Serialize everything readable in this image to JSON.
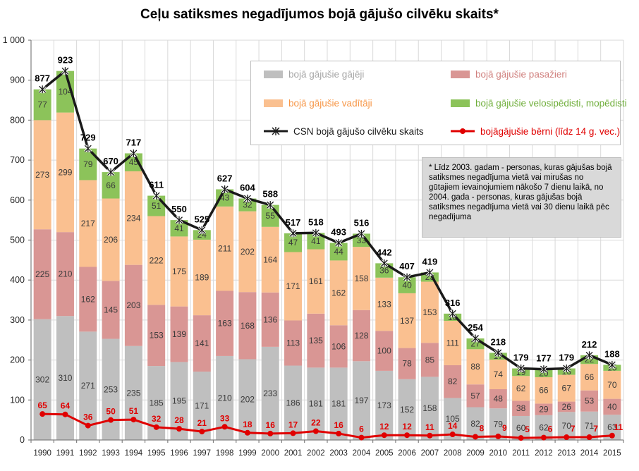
{
  "title": "Ceļu satiksmes negadījumos bojā gājušo cilvēku skaits*",
  "annotation": {
    "text": "* Līdz 2003. gadam - personas, kuras gājušas bojā satiksmes negadījuma vietā vai mirušas no gūtajiem ievainojumiem nākošo 7 dienu laikā, no 2004. gada - personas, kuras gājušas bojā satiksmes negadījuma vietā vai 30 dienu laikā pēc negadījuma"
  },
  "colors": {
    "pedestrians": "#bfbfbf",
    "passengers": "#d99694",
    "drivers": "#fac090",
    "cyclists": "#8cc35a",
    "total_line": "#1a1a1a",
    "children_line": "#e00000",
    "grid": "#d9d9d9",
    "axis": "#808080",
    "segment_label": "#3a3a3a",
    "annotation_bg": "#d9d9d9"
  },
  "legend": {
    "items": [
      {
        "label": "bojā gājušie gājēji",
        "type": "box",
        "color": "#bfbfbf",
        "text_color": "#a6a6a6"
      },
      {
        "label": "bojā gājušie pasažieri",
        "type": "box",
        "color": "#d99694",
        "text_color": "#d0807e"
      },
      {
        "label": "bojā gājušie vadītāji",
        "type": "box",
        "color": "#fac090",
        "text_color": "#f79646"
      },
      {
        "label": "bojā gājušie velosipēdisti, mopēdisti",
        "type": "box",
        "color": "#8cc35a",
        "text_color": "#6fae3a"
      },
      {
        "label": "CSN bojā gājušo cilvēku skaits",
        "type": "line-star",
        "color": "#1a1a1a",
        "text_color": "#1a1a1a"
      },
      {
        "label": "bojāgājušie bērni (līdz 14 g. vec.)",
        "type": "line-dot",
        "color": "#e00000",
        "text_color": "#e00000"
      }
    ]
  },
  "chart_data": {
    "type": "bar",
    "subtype": "stacked bars with two overlay lines",
    "title": "Ceļu satiksmes negadījumos bojā gājušo cilvēku skaits*",
    "xlabel": "",
    "ylabel": "",
    "ylim": [
      0,
      1000
    ],
    "ytick_interval": 100,
    "ytick_labels": [
      "0",
      "100",
      "200",
      "300",
      "400",
      "500",
      "600",
      "700",
      "800",
      "900",
      "1 000"
    ],
    "grid": true,
    "legend_position": "top-right inside plot",
    "categories": [
      "1990",
      "1991",
      "1992",
      "1993",
      "1994",
      "1995",
      "1996",
      "1997",
      "1998",
      "1999",
      "2000",
      "2001",
      "2002",
      "2003",
      "2004",
      "2005",
      "2006",
      "2007",
      "2008",
      "2009",
      "2010",
      "2011",
      "2012",
      "2013",
      "2014",
      "2015"
    ],
    "series": [
      {
        "name": "bojā gājušie gājēji",
        "role": "bar",
        "color": "#bfbfbf",
        "values": [
          302,
          310,
          271,
          253,
          235,
          185,
          195,
          171,
          210,
          202,
          233,
          186,
          181,
          181,
          197,
          173,
          152,
          158,
          105,
          82,
          79,
          60,
          62,
          70,
          71,
          63
        ]
      },
      {
        "name": "bojā gājušie pasažieri",
        "role": "bar",
        "color": "#d99694",
        "values": [
          225,
          210,
          162,
          145,
          203,
          153,
          139,
          141,
          163,
          168,
          136,
          113,
          135,
          106,
          128,
          100,
          78,
          85,
          82,
          57,
          48,
          38,
          29,
          26,
          53,
          40
        ]
      },
      {
        "name": "bojā gājušie vadītāji",
        "role": "bar",
        "color": "#fac090",
        "values": [
          273,
          299,
          217,
          206,
          234,
          222,
          175,
          189,
          211,
          202,
          164,
          171,
          161,
          162,
          158,
          133,
          137,
          153,
          111,
          88,
          74,
          62,
          66,
          67,
          66,
          70
        ]
      },
      {
        "name": "bojā gājušie velosipēdisti, mopēdisti",
        "role": "bar",
        "color": "#8cc35a",
        "values": [
          77,
          104,
          79,
          66,
          45,
          51,
          41,
          24,
          43,
          32,
          55,
          47,
          41,
          44,
          33,
          36,
          40,
          23,
          18,
          27,
          17,
          19,
          20,
          16,
          22,
          15
        ]
      },
      {
        "name": "CSN bojā gājušo cilvēku skaits",
        "role": "line",
        "marker": "star",
        "color": "#1a1a1a",
        "values": [
          877,
          923,
          729,
          670,
          717,
          611,
          550,
          525,
          627,
          604,
          588,
          517,
          518,
          493,
          516,
          442,
          407,
          419,
          316,
          254,
          218,
          179,
          177,
          179,
          212,
          188
        ]
      },
      {
        "name": "bojāgājušie bērni (līdz 14 g. vec.)",
        "role": "line",
        "marker": "circle",
        "color": "#e00000",
        "values": [
          65,
          64,
          36,
          50,
          51,
          32,
          28,
          21,
          33,
          18,
          16,
          17,
          22,
          16,
          6,
          12,
          12,
          11,
          14,
          8,
          9,
          5,
          6,
          7,
          7,
          11
        ]
      }
    ]
  }
}
